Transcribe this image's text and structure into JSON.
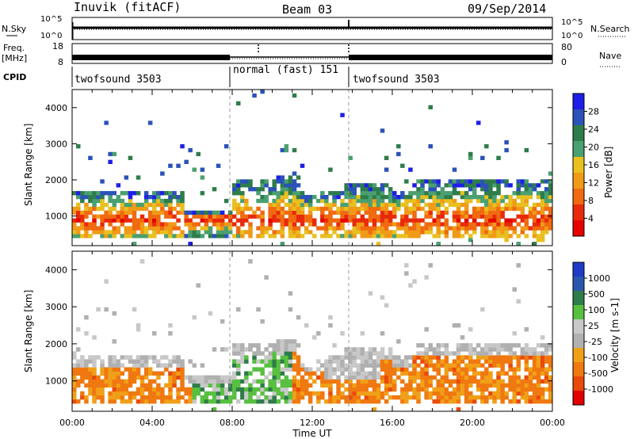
{
  "header": {
    "station": "Inuvik (fitACF)",
    "beam": "Beam 03",
    "date": "09/Sep/2014"
  },
  "top_panels": {
    "nsky_label": "N.Sky",
    "nsky_ticks": [
      "10^5",
      "10^0"
    ],
    "nsearch_label": "N.Search",
    "nsearch_ticks": [
      "10^5",
      "10^0"
    ],
    "freq_label": "Freq.",
    "freq_unit": "[MHz]",
    "freq_ticks": [
      "18",
      "8"
    ],
    "nave_label": "Nave",
    "nave_ticks": [
      "80",
      "0"
    ],
    "cpid_label": "CPID",
    "cpid_segments": [
      {
        "label": "twofsound 3503",
        "start": 0,
        "end": 8
      },
      {
        "label": "normal (fast) 151",
        "start": 8,
        "end": 14
      },
      {
        "label": "twofsound 3503",
        "start": 14,
        "end": 24
      }
    ]
  },
  "colors": {
    "power": [
      "#1e1ee8",
      "#2b52b8",
      "#2e7c4a",
      "#4aa070",
      "#e8c020",
      "#f09a18",
      "#f06a10",
      "#e82a0a",
      "#e60000"
    ],
    "velocity": [
      "#1e3cc8",
      "#2a58b0",
      "#2e7c4a",
      "#58c040",
      "#c8c8c8",
      "#b0b0b0",
      "#f0a018",
      "#f07810",
      "#e84a0a",
      "#e00000"
    ]
  },
  "chart_data": [
    {
      "type": "heatmap",
      "title": "Power",
      "xlabel": "Time UT",
      "ylabel": "Slant Range [km]",
      "xlim": [
        0,
        24
      ],
      "ylim": [
        180,
        4500
      ],
      "x_tick_labels": [
        "00:00",
        "04:00",
        "08:00",
        "12:00",
        "16:00",
        "20:00",
        "00:00"
      ],
      "y_tick_labels": [
        "1000",
        "2000",
        "3000",
        "4000"
      ],
      "colorbar": {
        "label": "Power [dB]",
        "ticks": [
          "28",
          "24",
          "20",
          "16",
          "12",
          "8",
          "4"
        ],
        "range": [
          0,
          30
        ]
      }
    },
    {
      "type": "heatmap",
      "title": "Velocity",
      "xlabel": "Time UT",
      "ylabel": "Slant Range [km]",
      "xlim": [
        0,
        24
      ],
      "ylim": [
        180,
        4500
      ],
      "x_tick_labels": [
        "00:00",
        "04:00",
        "08:00",
        "12:00",
        "16:00",
        "20:00",
        "00:00"
      ],
      "y_tick_labels": [
        "1000",
        "2000",
        "3000",
        "4000"
      ],
      "colorbar": {
        "label": "Velocity [m s-1]",
        "ticks": [
          "1000",
          "500",
          "100",
          "25",
          "-25",
          "-100",
          "-500",
          "-1000"
        ],
        "range": [
          -1250,
          1250
        ]
      }
    }
  ]
}
